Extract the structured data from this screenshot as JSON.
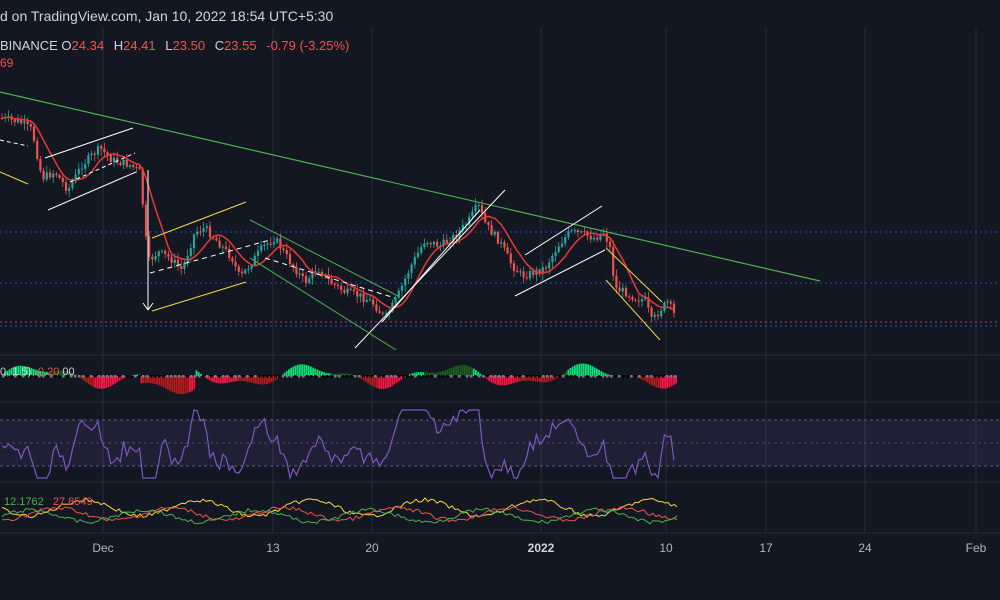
{
  "header": {
    "watermark_text": "d on TradingView.com, Jan 10, 2022 18:54 UTC+5:30"
  },
  "ohlc": {
    "exchange": "BINANCE",
    "open_label": "O",
    "open": "24.34",
    "high_label": "H",
    "high": "24.41",
    "low_label": "L",
    "low": "23.50",
    "close_label": "C",
    "close": "23.55",
    "change": "-0.79 (-3.25%)"
  },
  "ma_value": "69",
  "squeeze": {
    "label_prefix": "0, 1.5)",
    "value": "-0.20",
    "value2": "00"
  },
  "dmi": {
    "value1": "12.1762",
    "value2": "27.8549"
  },
  "colors": {
    "background": "#131722",
    "up": "#26a69a",
    "down": "#ef5350",
    "ma": "#e53935",
    "trend_green": "#4caf50",
    "channel_yellow": "#f5d742",
    "rsi": "#7e57c2",
    "grid": "#2a2e39"
  },
  "chart_data": {
    "type": "candlestick",
    "x_ticks": [
      {
        "label": "Dec",
        "bold": false
      },
      {
        "label": "13",
        "bold": false
      },
      {
        "label": "20",
        "bold": false
      },
      {
        "label": "2022",
        "bold": true
      },
      {
        "label": "10",
        "bold": false
      },
      {
        "label": "17",
        "bold": false
      },
      {
        "label": "24",
        "bold": false
      },
      {
        "label": "Feb",
        "bold": false
      }
    ],
    "last_close": 23.55
  }
}
